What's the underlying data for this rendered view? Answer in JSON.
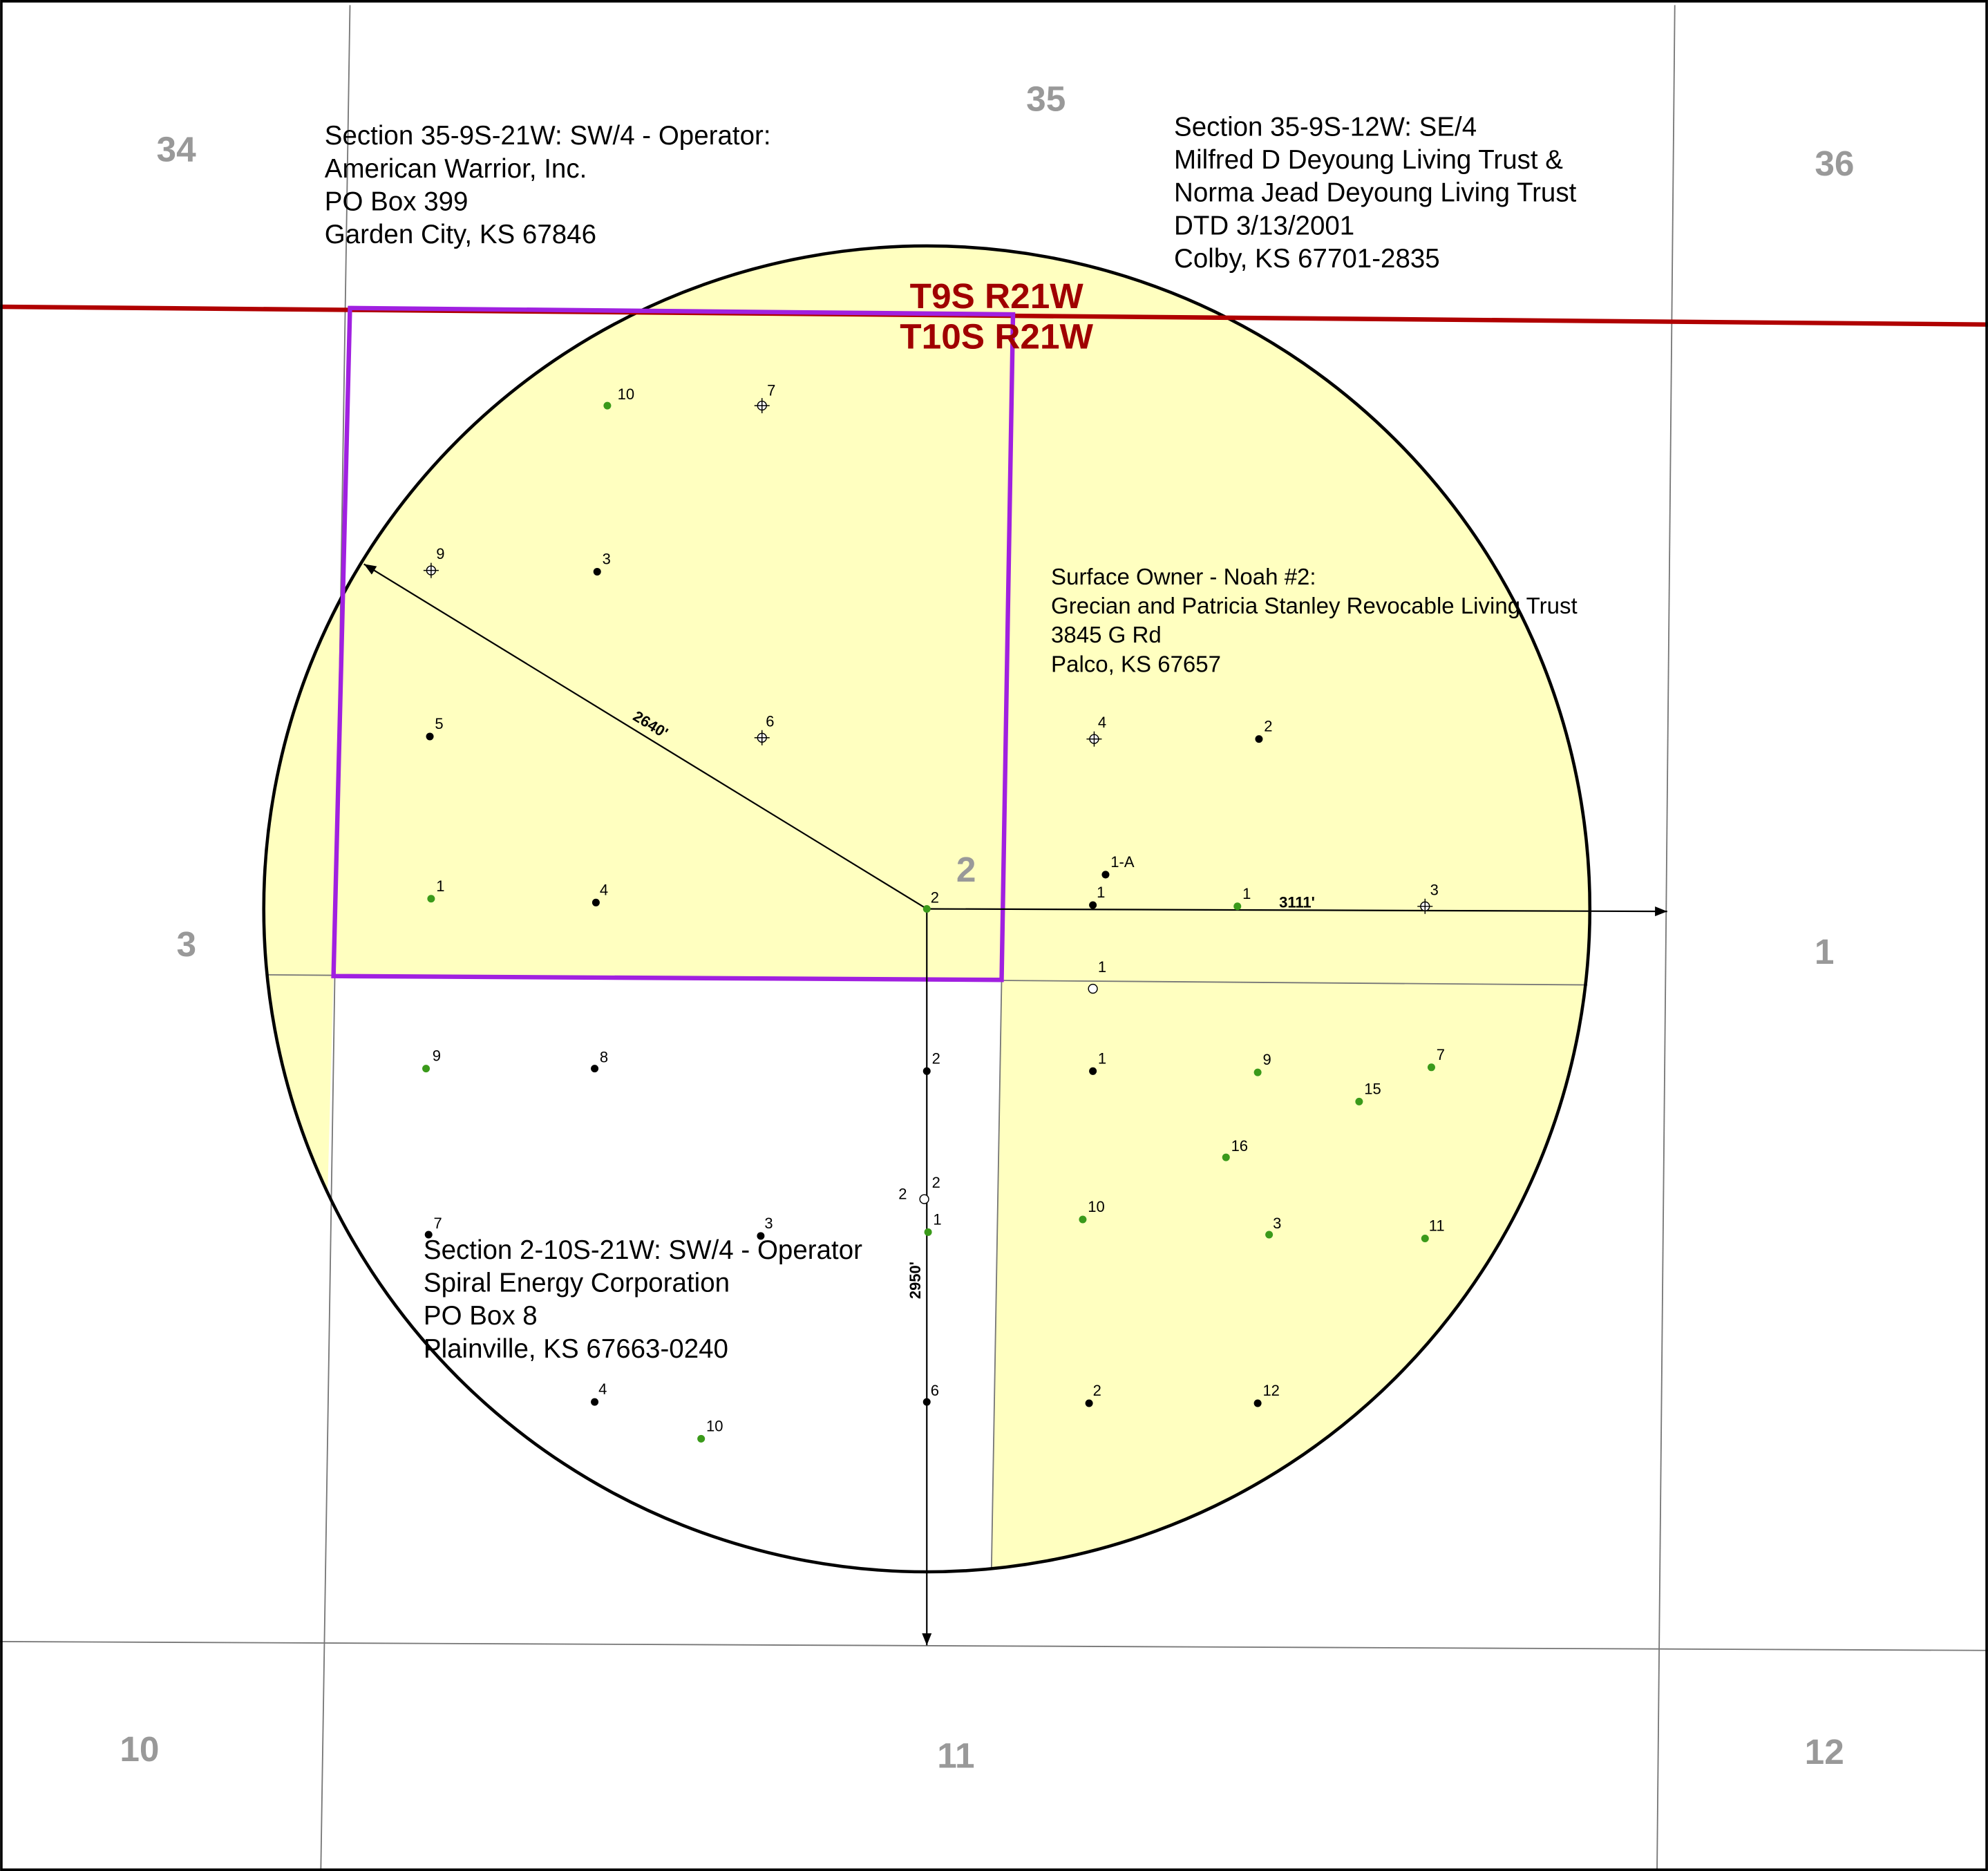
{
  "sections": [
    "34",
    "35",
    "36",
    "3",
    "2",
    "1",
    "10",
    "11",
    "12"
  ],
  "township_labels": [
    "T9S R21W",
    "T10S R21W"
  ],
  "owner_notes": [
    [
      "Section 35-9S-21W: SW/4 - Operator:",
      "American Warrior, Inc.",
      "PO Box 399",
      "Garden City, KS 67846"
    ],
    [
      "Section 35-9S-12W: SE/4",
      "Milfred D Deyoung Living Trust &",
      "Norma Jead Deyoung Living Trust",
      "DTD 3/13/2001",
      "Colby, KS 67701-2835"
    ],
    [
      "Surface Owner - Noah #2:",
      "Grecian and Patricia Stanley Revocable Living Trust",
      "3845 G Rd",
      "Palco, KS 67657"
    ],
    [
      "Section 2-10S-21W: SW/4 - Operator",
      "Spiral Energy Corporation",
      "PO Box 8",
      "Plainville, KS 67663-0240"
    ]
  ],
  "distances": [
    "2640'",
    "3111'",
    "2950'"
  ],
  "wells": [
    "10",
    "7",
    "9",
    "3",
    "5",
    "6",
    "4",
    "2",
    "1",
    "4",
    "2",
    "1-A",
    "1",
    "1",
    "3",
    "1",
    "9",
    "8",
    "2",
    "1",
    "9",
    "7",
    "15",
    "16",
    "2",
    "2",
    "1",
    "10",
    "3",
    "11",
    "7",
    "3",
    "4",
    "10",
    "6",
    "2",
    "12"
  ]
}
